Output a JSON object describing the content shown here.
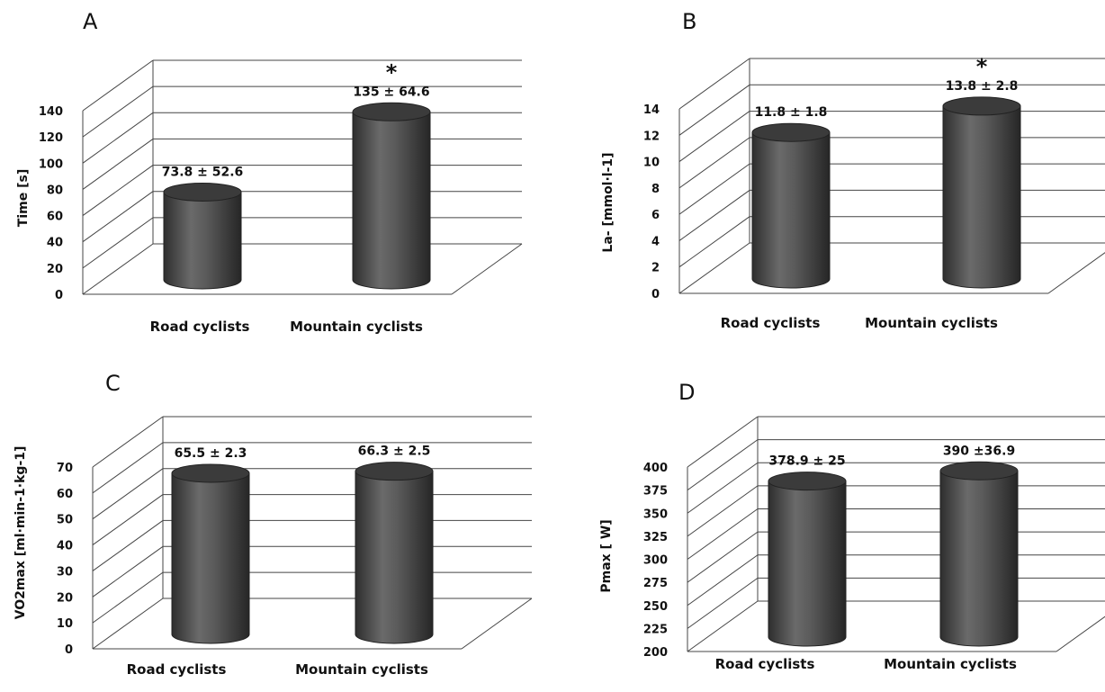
{
  "figure": {
    "panels": [
      "A",
      "B",
      "C",
      "D"
    ]
  },
  "chart_data": [
    {
      "type": "bar",
      "panel": "A",
      "categories": [
        "Road cyclists",
        "Mountain cyclists"
      ],
      "values": [
        73.8,
        135
      ],
      "value_labels": [
        "73.8 ± 52.6",
        "135 ± 64.6"
      ],
      "significance": [
        "",
        "*"
      ],
      "ylabel": "Time [s]",
      "ylim": [
        0,
        140
      ],
      "yticks": [
        "0",
        "20",
        "40",
        "60",
        "80",
        "100",
        "120",
        "140"
      ],
      "grid": true,
      "style": "3d-cylinder"
    },
    {
      "type": "bar",
      "panel": "B",
      "categories": [
        "Road cyclists",
        "Mountain cyclists"
      ],
      "values": [
        11.8,
        13.8
      ],
      "value_labels": [
        "11.8 ± 1.8",
        "13.8 ± 2.8"
      ],
      "significance": [
        "",
        "*"
      ],
      "ylabel": "La- [mmol·l-1]",
      "ylim": [
        0,
        14
      ],
      "yticks": [
        "0",
        "2",
        "4",
        "6",
        "8",
        "10",
        "12",
        "14"
      ],
      "grid": true,
      "style": "3d-cylinder"
    },
    {
      "type": "bar",
      "panel": "C",
      "categories": [
        "Road cyclists",
        "Mountain cyclists"
      ],
      "values": [
        65.5,
        66.3
      ],
      "value_labels": [
        "65.5 ± 2.3",
        "66.3 ± 2.5"
      ],
      "significance": [
        "",
        ""
      ],
      "ylabel": "VO2max [ml·min-1·kg-1]",
      "ylim": [
        0,
        70
      ],
      "yticks": [
        "0",
        "10",
        "20",
        "30",
        "40",
        "50",
        "60",
        "70"
      ],
      "grid": true,
      "style": "3d-cylinder"
    },
    {
      "type": "bar",
      "panel": "D",
      "categories": [
        "Road cyclists",
        "Mountain cyclists"
      ],
      "values": [
        378.9,
        390
      ],
      "value_labels": [
        "378.9 ± 25",
        "390 ±36.9"
      ],
      "significance": [
        "",
        ""
      ],
      "ylabel": "Pmax [ W]",
      "ylim": [
        200,
        400
      ],
      "yticks": [
        "200",
        "225",
        "250",
        "275",
        "300",
        "325",
        "350",
        "375",
        "400"
      ],
      "grid": true,
      "style": "3d-cylinder"
    }
  ]
}
